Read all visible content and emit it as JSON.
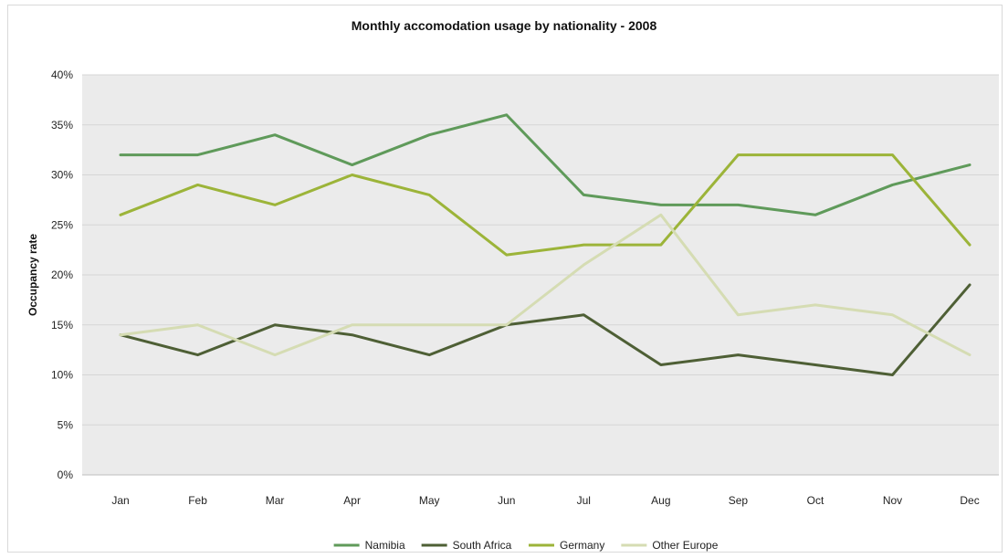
{
  "chart_data": {
    "type": "line",
    "title": "Monthly accomodation usage by nationality - 2008",
    "xlabel": "",
    "ylabel": "Occupancy rate",
    "categories": [
      "Jan",
      "Feb",
      "Mar",
      "Apr",
      "May",
      "Jun",
      "Jul",
      "Aug",
      "Sep",
      "Oct",
      "Nov",
      "Dec"
    ],
    "ylim": [
      0,
      40
    ],
    "yticks": [
      0,
      5,
      10,
      15,
      20,
      25,
      30,
      35,
      40
    ],
    "ytick_labels": [
      "0%",
      "5%",
      "10%",
      "15%",
      "20%",
      "25%",
      "30%",
      "35%",
      "40%"
    ],
    "grid": true,
    "legend_position": "bottom",
    "series": [
      {
        "name": "Namibia",
        "color": "#5f9a5a",
        "values": [
          32,
          32,
          34,
          31,
          34,
          36,
          28,
          27,
          27,
          26,
          29,
          31
        ]
      },
      {
        "name": "South Africa",
        "color": "#4e5f35",
        "values": [
          14,
          12,
          15,
          14,
          12,
          15,
          16,
          11,
          12,
          11,
          10,
          19
        ]
      },
      {
        "name": "Germany",
        "color": "#9cb439",
        "values": [
          26,
          29,
          27,
          30,
          28,
          22,
          23,
          23,
          32,
          32,
          32,
          23
        ]
      },
      {
        "name": "Other Europe",
        "color": "#d5dcb3",
        "values": [
          14,
          15,
          12,
          15,
          15,
          15,
          21,
          26,
          16,
          17,
          16,
          12
        ]
      }
    ]
  }
}
